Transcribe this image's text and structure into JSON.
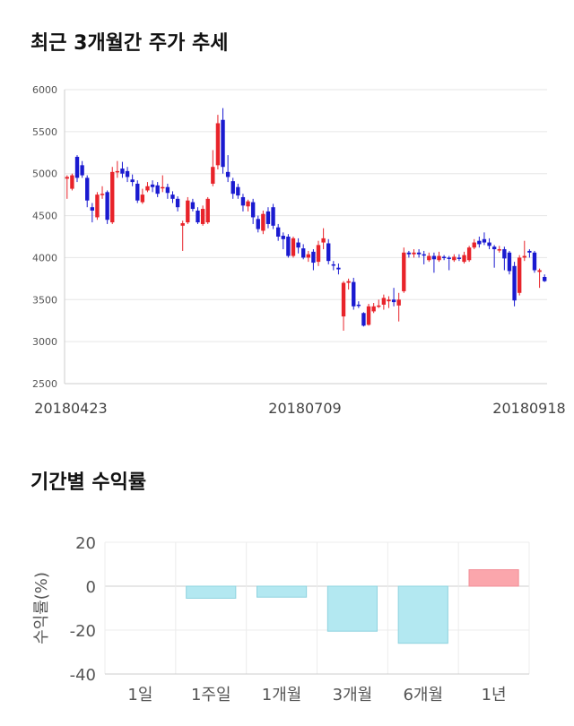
{
  "price_section": {
    "title": "최근 3개월간 주가 추세"
  },
  "return_section": {
    "title": "기간별 수익률",
    "ylabel": "수익률(%)"
  },
  "colors": {
    "up": "#e8232a",
    "down": "#1a1ad0",
    "negative_bar": "#b3e8f1",
    "positive_bar": "#fba6ac"
  },
  "chart_data": [
    {
      "type": "candlestick",
      "title": "최근 3개월간 주가 추세",
      "ylim": [
        2500,
        6000
      ],
      "yticks": [
        2500,
        3000,
        3500,
        4000,
        4500,
        5000,
        5500,
        6000
      ],
      "date_labels": [
        "20180423",
        "20180709",
        "20180918"
      ],
      "grid": true,
      "candles": [
        [
          4940,
          4960,
          4700,
          4980
        ],
        [
          4820,
          4980,
          4800,
          5000
        ],
        [
          5200,
          4950,
          4900,
          5220
        ],
        [
          5100,
          4980,
          4950,
          5150
        ],
        [
          4950,
          4680,
          4600,
          4980
        ],
        [
          4600,
          4560,
          4420,
          4650
        ],
        [
          4480,
          4750,
          4450,
          4780
        ],
        [
          4760,
          4760,
          4700,
          4850
        ],
        [
          4780,
          4450,
          4400,
          4800
        ],
        [
          4420,
          5020,
          4400,
          5080
        ],
        [
          5020,
          5030,
          4950,
          5150
        ],
        [
          5060,
          5000,
          4950,
          5140
        ],
        [
          5030,
          4960,
          4900,
          5080
        ],
        [
          4930,
          4900,
          4850,
          4990
        ],
        [
          4880,
          4680,
          4650,
          4920
        ],
        [
          4660,
          4750,
          4640,
          4820
        ],
        [
          4800,
          4850,
          4780,
          4900
        ],
        [
          4870,
          4840,
          4780,
          4920
        ],
        [
          4860,
          4760,
          4720,
          4900
        ],
        [
          4840,
          4840,
          4780,
          4980
        ],
        [
          4840,
          4770,
          4700,
          4880
        ],
        [
          4750,
          4700,
          4650,
          4790
        ],
        [
          4700,
          4600,
          4550,
          4730
        ],
        [
          4380,
          4410,
          4080,
          4440
        ],
        [
          4420,
          4680,
          4400,
          4720
        ],
        [
          4660,
          4580,
          4550,
          4700
        ],
        [
          4560,
          4420,
          4400,
          4600
        ],
        [
          4400,
          4580,
          4380,
          4620
        ],
        [
          4420,
          4700,
          4400,
          4720
        ],
        [
          4880,
          5080,
          4850,
          5280
        ],
        [
          5100,
          5600,
          5050,
          5700
        ],
        [
          5640,
          5080,
          5000,
          5780
        ],
        [
          5020,
          4960,
          4900,
          5220
        ],
        [
          4910,
          4760,
          4700,
          4950
        ],
        [
          4840,
          4740,
          4700,
          4880
        ],
        [
          4720,
          4620,
          4550,
          4760
        ],
        [
          4610,
          4670,
          4550,
          4690
        ],
        [
          4660,
          4480,
          4400,
          4700
        ],
        [
          4460,
          4340,
          4300,
          4500
        ],
        [
          4320,
          4520,
          4280,
          4560
        ],
        [
          4550,
          4400,
          4350,
          4600
        ],
        [
          4600,
          4380,
          4340,
          4640
        ],
        [
          4360,
          4250,
          4200,
          4400
        ],
        [
          4260,
          4220,
          4100,
          4300
        ],
        [
          4250,
          4020,
          4000,
          4280
        ],
        [
          4020,
          4230,
          4000,
          4250
        ],
        [
          4180,
          4120,
          4050,
          4230
        ],
        [
          4110,
          4000,
          3980,
          4160
        ],
        [
          4000,
          4040,
          3950,
          4080
        ],
        [
          4070,
          3940,
          3850,
          4100
        ],
        [
          3950,
          4150,
          3900,
          4200
        ],
        [
          4180,
          4230,
          4100,
          4350
        ],
        [
          4170,
          3960,
          3920,
          4220
        ],
        [
          3920,
          3910,
          3850,
          3960
        ],
        [
          3880,
          3860,
          3800,
          3930
        ],
        [
          3300,
          3700,
          3130,
          3720
        ],
        [
          3700,
          3720,
          3620,
          3750
        ],
        [
          3710,
          3420,
          3380,
          3760
        ],
        [
          3440,
          3430,
          3400,
          3480
        ],
        [
          3340,
          3190,
          3180,
          3350
        ],
        [
          3200,
          3420,
          3190,
          3450
        ],
        [
          3360,
          3420,
          3340,
          3460
        ],
        [
          3420,
          3430,
          3400,
          3500
        ],
        [
          3440,
          3520,
          3380,
          3560
        ],
        [
          3480,
          3500,
          3400,
          3540
        ],
        [
          3500,
          3470,
          3420,
          3640
        ],
        [
          3430,
          3500,
          3240,
          3580
        ],
        [
          3600,
          4060,
          3580,
          4120
        ],
        [
          4060,
          4040,
          4000,
          4080
        ],
        [
          4040,
          4060,
          4000,
          4100
        ],
        [
          4060,
          4040,
          4000,
          4100
        ],
        [
          4040,
          4030,
          3920,
          4080
        ],
        [
          3970,
          4020,
          3950,
          4060
        ],
        [
          4020,
          3980,
          3820,
          4060
        ],
        [
          3970,
          4020,
          3950,
          4070
        ],
        [
          4010,
          4000,
          3970,
          4030
        ],
        [
          4000,
          3990,
          3850,
          4020
        ],
        [
          3970,
          4010,
          3950,
          4040
        ],
        [
          4000,
          3990,
          3960,
          4040
        ],
        [
          3950,
          4030,
          3930,
          4070
        ],
        [
          3970,
          4120,
          3950,
          4140
        ],
        [
          4120,
          4180,
          4100,
          4220
        ],
        [
          4200,
          4160,
          4120,
          4250
        ],
        [
          4220,
          4180,
          4150,
          4300
        ],
        [
          4180,
          4140,
          4100,
          4230
        ],
        [
          4130,
          4100,
          3880,
          4150
        ],
        [
          4100,
          4100,
          4060,
          4140
        ],
        [
          4100,
          3990,
          3850,
          4130
        ],
        [
          4060,
          3840,
          3800,
          4080
        ],
        [
          3900,
          3490,
          3420,
          3950
        ],
        [
          3580,
          4000,
          3550,
          4030
        ],
        [
          4000,
          4020,
          3960,
          4200
        ],
        [
          4080,
          4060,
          4000,
          4100
        ],
        [
          4060,
          3850,
          3820,
          4080
        ],
        [
          3830,
          3850,
          3640,
          3870
        ],
        [
          3770,
          3720,
          3710,
          3800
        ]
      ]
    },
    {
      "type": "bar",
      "title": "기간별 수익률",
      "ylabel": "수익률(%)",
      "categories": [
        "1일",
        "1주일",
        "1개월",
        "3개월",
        "6개월",
        "1년"
      ],
      "values": [
        0,
        -5.5,
        -5,
        -20.5,
        -26,
        7.5
      ],
      "ylim": [
        -40,
        20
      ],
      "yticks": [
        20,
        0,
        -20,
        -40
      ],
      "grid": true
    }
  ]
}
